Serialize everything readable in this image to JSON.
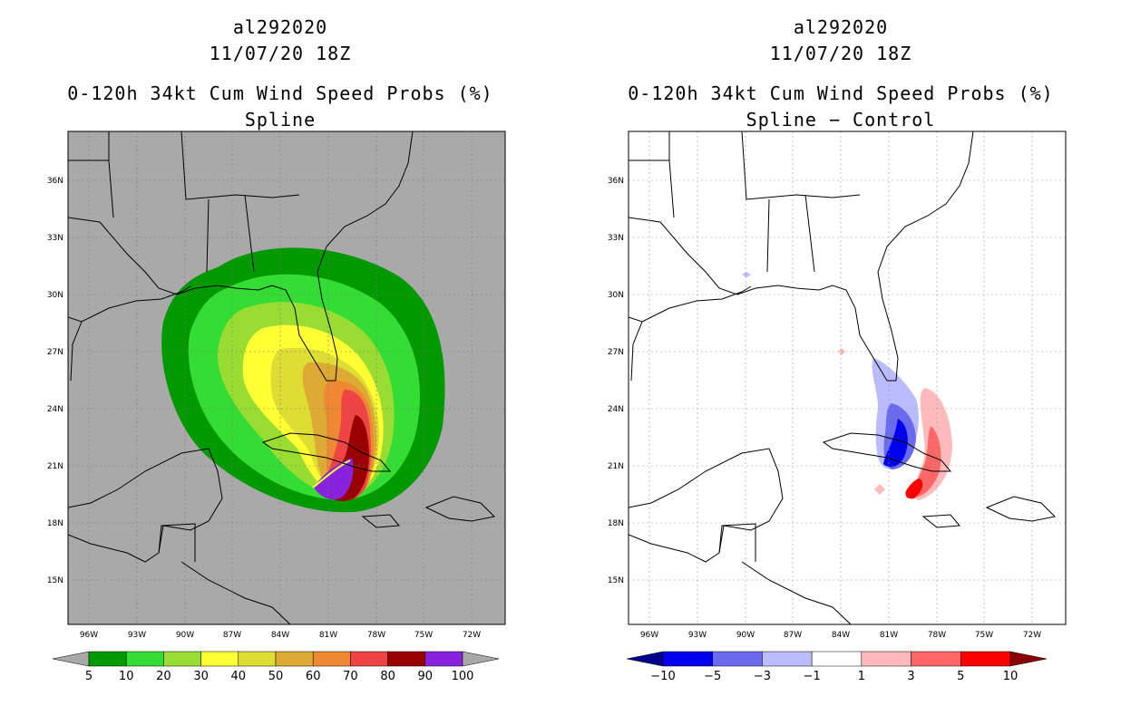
{
  "panels": [
    {
      "storm_id": "al292020",
      "datetime": "11/07/20 18Z",
      "product": "0-120h 34kt Cum Wind Speed Probs (%)",
      "subtitle": "Spline",
      "background": "#a9a9a9"
    },
    {
      "storm_id": "al292020",
      "datetime": "11/07/20 18Z",
      "product": "0-120h 34kt Cum Wind Speed Probs (%)",
      "subtitle": "Spline − Control",
      "background": "#ffffff"
    }
  ],
  "axes": {
    "lon_labels": [
      "96W",
      "93W",
      "90W",
      "87W",
      "84W",
      "81W",
      "78W",
      "75W",
      "72W"
    ],
    "lat_labels": [
      "36N",
      "33N",
      "30N",
      "27N",
      "24N",
      "21N",
      "18N",
      "15N"
    ]
  },
  "colorbars": {
    "left": {
      "labels": [
        "5",
        "10",
        "20",
        "30",
        "40",
        "50",
        "60",
        "70",
        "80",
        "90",
        "100"
      ],
      "colors": [
        "#009900",
        "#33dd33",
        "#99dd33",
        "#ffff33",
        "#dddd33",
        "#ddaa33",
        "#ee8833",
        "#ee4444",
        "#990000",
        "#8822dd"
      ],
      "end_colors": [
        "#a9a9a9",
        "#a9a9a9"
      ]
    },
    "right": {
      "labels": [
        "−10",
        "−5",
        "−3",
        "−1",
        "1",
        "3",
        "5",
        "10"
      ],
      "colors": [
        "#0000ee",
        "#6a6aee",
        "#bbbbff",
        "#ffffff",
        "#ffbbbb",
        "#ff6666",
        "#ff0000"
      ],
      "end_colors": [
        "#00008b",
        "#8b0000"
      ]
    }
  },
  "chart_data": {
    "type": "map",
    "region_lon": [
      -97,
      -71
    ],
    "region_lat": [
      13,
      39
    ],
    "gridlines_every_deg": 3,
    "left_contour_levels_pct": [
      5,
      10,
      20,
      30,
      40,
      50,
      60,
      70,
      80,
      90,
      100
    ],
    "right_contour_levels_pct": [
      -10,
      -5,
      -3,
      -1,
      1,
      3,
      5,
      10
    ]
  }
}
